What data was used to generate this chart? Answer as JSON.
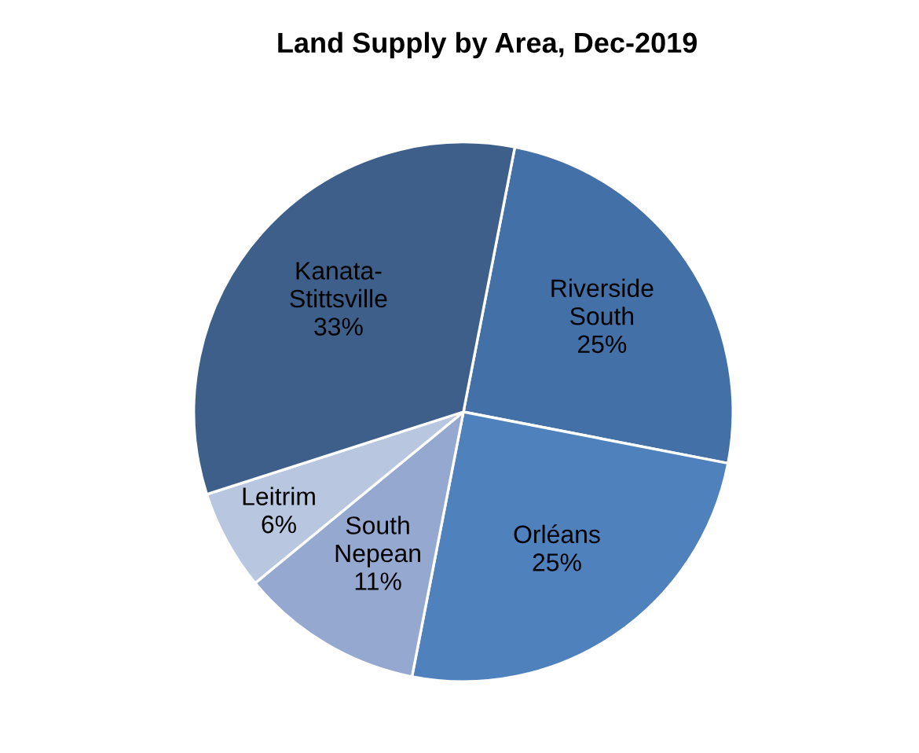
{
  "chart_data": {
    "type": "pie",
    "title": "Land Supply by Area, Dec-2019",
    "categories": [
      "Riverside South",
      "Orléans",
      "South Nepean",
      "Leitrim",
      "Kanata-Stittsville"
    ],
    "values": [
      25,
      25,
      11,
      6,
      33
    ],
    "colors": [
      "#4470a8",
      "#4f81bd",
      "#95a8d0",
      "#b9c6e0",
      "#3e5f8a"
    ],
    "value_labels": [
      "25%",
      "25%",
      "11%",
      "6%",
      "33%"
    ],
    "legend": false
  }
}
